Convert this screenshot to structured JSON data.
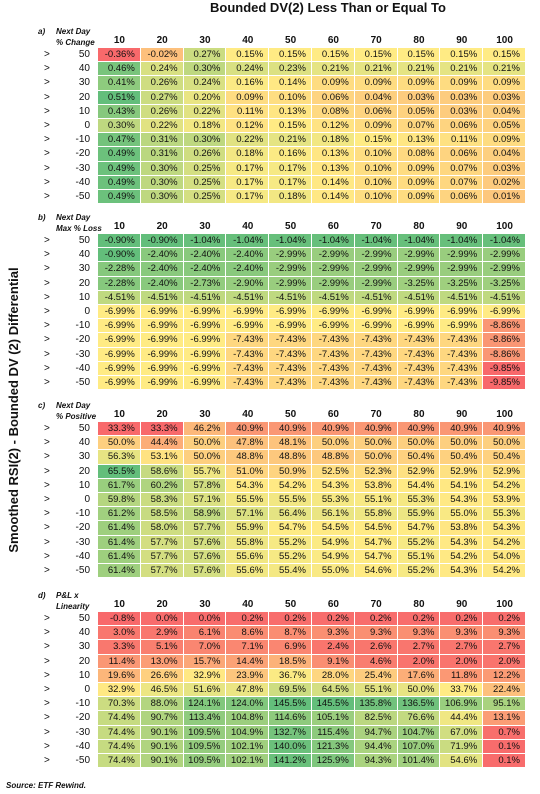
{
  "title": "Bounded DV(2) Less Than or Equal To",
  "side_label": "Smoothed RSI(2) - Bounded DV (2) Differential",
  "source": "Source:  ETF Rewind.",
  "tables": [
    {
      "letter": "a)",
      "title": "Next Day",
      "subtitle": "% Change",
      "row_prefix": ">",
      "columns": [
        "10",
        "20",
        "30",
        "40",
        "50",
        "60",
        "70",
        "80",
        "90",
        "100"
      ],
      "rows": [
        {
          "label": "50",
          "cells": [
            "-0.36%",
            "-0.02%",
            "0.27%",
            "0.15%",
            "0.15%",
            "0.15%",
            "0.15%",
            "0.15%",
            "0.15%",
            "0.15%"
          ]
        },
        {
          "label": "40",
          "cells": [
            "0.46%",
            "0.24%",
            "0.30%",
            "0.24%",
            "0.23%",
            "0.21%",
            "0.21%",
            "0.21%",
            "0.21%",
            "0.21%"
          ]
        },
        {
          "label": "30",
          "cells": [
            "0.41%",
            "0.26%",
            "0.24%",
            "0.16%",
            "0.14%",
            "0.09%",
            "0.09%",
            "0.09%",
            "0.09%",
            "0.09%"
          ]
        },
        {
          "label": "20",
          "cells": [
            "0.51%",
            "0.27%",
            "0.20%",
            "0.09%",
            "0.10%",
            "0.06%",
            "0.04%",
            "0.03%",
            "0.03%",
            "0.03%"
          ]
        },
        {
          "label": "10",
          "cells": [
            "0.43%",
            "0.26%",
            "0.22%",
            "0.11%",
            "0.13%",
            "0.08%",
            "0.06%",
            "0.05%",
            "0.03%",
            "0.04%"
          ]
        },
        {
          "label": "0",
          "cells": [
            "0.30%",
            "0.22%",
            "0.18%",
            "0.12%",
            "0.15%",
            "0.12%",
            "0.09%",
            "0.07%",
            "0.06%",
            "0.05%"
          ]
        },
        {
          "label": "-10",
          "cells": [
            "0.47%",
            "0.31%",
            "0.30%",
            "0.22%",
            "0.21%",
            "0.18%",
            "0.15%",
            "0.13%",
            "0.11%",
            "0.09%"
          ]
        },
        {
          "label": "-20",
          "cells": [
            "0.49%",
            "0.31%",
            "0.26%",
            "0.18%",
            "0.16%",
            "0.13%",
            "0.10%",
            "0.08%",
            "0.06%",
            "0.04%"
          ]
        },
        {
          "label": "-30",
          "cells": [
            "0.49%",
            "0.30%",
            "0.25%",
            "0.17%",
            "0.17%",
            "0.13%",
            "0.10%",
            "0.09%",
            "0.07%",
            "0.03%"
          ]
        },
        {
          "label": "-40",
          "cells": [
            "0.49%",
            "0.30%",
            "0.25%",
            "0.17%",
            "0.17%",
            "0.14%",
            "0.10%",
            "0.09%",
            "0.07%",
            "0.02%"
          ]
        },
        {
          "label": "-50",
          "cells": [
            "0.49%",
            "0.30%",
            "0.25%",
            "0.17%",
            "0.18%",
            "0.14%",
            "0.10%",
            "0.09%",
            "0.06%",
            "0.01%"
          ]
        }
      ]
    },
    {
      "letter": "b)",
      "title": "Next Day",
      "subtitle": "Max % Loss",
      "row_prefix": ">",
      "columns": [
        "10",
        "20",
        "30",
        "40",
        "50",
        "60",
        "70",
        "80",
        "90",
        "100"
      ],
      "rows": [
        {
          "label": "50",
          "cells": [
            "-0.90%",
            "-0.90%",
            "-1.04%",
            "-1.04%",
            "-1.04%",
            "-1.04%",
            "-1.04%",
            "-1.04%",
            "-1.04%",
            "-1.04%"
          ]
        },
        {
          "label": "40",
          "cells": [
            "-0.90%",
            "-2.40%",
            "-2.40%",
            "-2.40%",
            "-2.99%",
            "-2.99%",
            "-2.99%",
            "-2.99%",
            "-2.99%",
            "-2.99%"
          ]
        },
        {
          "label": "30",
          "cells": [
            "-2.28%",
            "-2.40%",
            "-2.40%",
            "-2.40%",
            "-2.99%",
            "-2.99%",
            "-2.99%",
            "-2.99%",
            "-2.99%",
            "-2.99%"
          ]
        },
        {
          "label": "20",
          "cells": [
            "-2.28%",
            "-2.40%",
            "-2.73%",
            "-2.90%",
            "-2.99%",
            "-2.99%",
            "-2.99%",
            "-3.25%",
            "-3.25%",
            "-3.25%"
          ]
        },
        {
          "label": "10",
          "cells": [
            "-4.51%",
            "-4.51%",
            "-4.51%",
            "-4.51%",
            "-4.51%",
            "-4.51%",
            "-4.51%",
            "-4.51%",
            "-4.51%",
            "-4.51%"
          ]
        },
        {
          "label": "0",
          "cells": [
            "-6.99%",
            "-6.99%",
            "-6.99%",
            "-6.99%",
            "-6.99%",
            "-6.99%",
            "-6.99%",
            "-6.99%",
            "-6.99%",
            "-6.99%"
          ]
        },
        {
          "label": "-10",
          "cells": [
            "-6.99%",
            "-6.99%",
            "-6.99%",
            "-6.99%",
            "-6.99%",
            "-6.99%",
            "-6.99%",
            "-6.99%",
            "-6.99%",
            "-8.86%"
          ]
        },
        {
          "label": "-20",
          "cells": [
            "-6.99%",
            "-6.99%",
            "-6.99%",
            "-7.43%",
            "-7.43%",
            "-7.43%",
            "-7.43%",
            "-7.43%",
            "-7.43%",
            "-8.86%"
          ]
        },
        {
          "label": "-30",
          "cells": [
            "-6.99%",
            "-6.99%",
            "-6.99%",
            "-7.43%",
            "-7.43%",
            "-7.43%",
            "-7.43%",
            "-7.43%",
            "-7.43%",
            "-8.86%"
          ]
        },
        {
          "label": "-40",
          "cells": [
            "-6.99%",
            "-6.99%",
            "-6.99%",
            "-7.43%",
            "-7.43%",
            "-7.43%",
            "-7.43%",
            "-7.43%",
            "-7.43%",
            "-9.85%"
          ]
        },
        {
          "label": "-50",
          "cells": [
            "-6.99%",
            "-6.99%",
            "-6.99%",
            "-7.43%",
            "-7.43%",
            "-7.43%",
            "-7.43%",
            "-7.43%",
            "-7.43%",
            "-9.85%"
          ]
        }
      ]
    },
    {
      "letter": "c)",
      "title": "Next Day",
      "subtitle": "% Positive",
      "row_prefix": ">",
      "columns": [
        "10",
        "20",
        "30",
        "40",
        "50",
        "60",
        "70",
        "80",
        "90",
        "100"
      ],
      "rows": [
        {
          "label": "50",
          "cells": [
            "33.3%",
            "33.3%",
            "46.2%",
            "40.9%",
            "40.9%",
            "40.9%",
            "40.9%",
            "40.9%",
            "40.9%",
            "40.9%"
          ]
        },
        {
          "label": "40",
          "cells": [
            "50.0%",
            "44.4%",
            "50.0%",
            "47.8%",
            "48.1%",
            "50.0%",
            "50.0%",
            "50.0%",
            "50.0%",
            "50.0%"
          ]
        },
        {
          "label": "30",
          "cells": [
            "56.3%",
            "53.1%",
            "50.0%",
            "48.8%",
            "48.8%",
            "48.8%",
            "50.0%",
            "50.4%",
            "50.4%",
            "50.4%"
          ]
        },
        {
          "label": "20",
          "cells": [
            "65.5%",
            "58.6%",
            "55.7%",
            "51.0%",
            "50.9%",
            "52.5%",
            "52.3%",
            "52.9%",
            "52.9%",
            "52.9%"
          ]
        },
        {
          "label": "10",
          "cells": [
            "61.7%",
            "60.2%",
            "57.8%",
            "54.3%",
            "54.2%",
            "54.3%",
            "53.8%",
            "54.4%",
            "54.1%",
            "54.2%"
          ]
        },
        {
          "label": "0",
          "cells": [
            "59.8%",
            "58.3%",
            "57.1%",
            "55.5%",
            "55.5%",
            "55.3%",
            "55.1%",
            "55.3%",
            "54.3%",
            "53.9%"
          ]
        },
        {
          "label": "-10",
          "cells": [
            "61.2%",
            "58.5%",
            "58.9%",
            "57.1%",
            "56.4%",
            "56.1%",
            "55.8%",
            "55.9%",
            "55.0%",
            "55.3%"
          ]
        },
        {
          "label": "-20",
          "cells": [
            "61.4%",
            "58.0%",
            "57.7%",
            "55.9%",
            "54.7%",
            "54.5%",
            "54.5%",
            "54.7%",
            "53.8%",
            "54.3%"
          ]
        },
        {
          "label": "-30",
          "cells": [
            "61.4%",
            "57.7%",
            "57.6%",
            "55.8%",
            "55.2%",
            "54.9%",
            "54.7%",
            "55.2%",
            "54.3%",
            "54.2%"
          ]
        },
        {
          "label": "-40",
          "cells": [
            "61.4%",
            "57.7%",
            "57.6%",
            "55.6%",
            "55.2%",
            "54.9%",
            "54.7%",
            "55.1%",
            "54.2%",
            "54.0%"
          ]
        },
        {
          "label": "-50",
          "cells": [
            "61.4%",
            "57.7%",
            "57.6%",
            "55.6%",
            "55.4%",
            "55.0%",
            "54.6%",
            "55.2%",
            "54.3%",
            "54.2%"
          ]
        }
      ]
    },
    {
      "letter": "d)",
      "title": "P&L x",
      "subtitle": "Linearity",
      "row_prefix": ">",
      "columns": [
        "10",
        "20",
        "30",
        "40",
        "50",
        "60",
        "70",
        "80",
        "90",
        "100"
      ],
      "rows": [
        {
          "label": "50",
          "cells": [
            "-0.8%",
            "0.0%",
            "0.0%",
            "0.2%",
            "0.2%",
            "0.2%",
            "0.2%",
            "0.2%",
            "0.2%",
            "0.2%"
          ]
        },
        {
          "label": "40",
          "cells": [
            "3.0%",
            "2.9%",
            "6.1%",
            "8.6%",
            "8.7%",
            "9.3%",
            "9.3%",
            "9.3%",
            "9.3%",
            "9.3%"
          ]
        },
        {
          "label": "30",
          "cells": [
            "3.3%",
            "5.1%",
            "7.0%",
            "7.1%",
            "6.9%",
            "2.4%",
            "2.6%",
            "2.7%",
            "2.7%",
            "2.7%"
          ]
        },
        {
          "label": "20",
          "cells": [
            "11.4%",
            "13.0%",
            "15.7%",
            "14.4%",
            "18.5%",
            "9.1%",
            "4.6%",
            "2.0%",
            "2.0%",
            "2.0%"
          ]
        },
        {
          "label": "10",
          "cells": [
            "19.6%",
            "26.6%",
            "32.9%",
            "23.9%",
            "36.7%",
            "28.0%",
            "25.4%",
            "17.6%",
            "11.8%",
            "12.2%"
          ]
        },
        {
          "label": "0",
          "cells": [
            "32.9%",
            "46.5%",
            "51.6%",
            "47.8%",
            "69.5%",
            "64.5%",
            "55.1%",
            "50.0%",
            "33.7%",
            "22.4%"
          ]
        },
        {
          "label": "-10",
          "cells": [
            "70.3%",
            "88.0%",
            "124.1%",
            "124.0%",
            "145.5%",
            "145.5%",
            "135.8%",
            "136.5%",
            "106.9%",
            "95.1%"
          ]
        },
        {
          "label": "-20",
          "cells": [
            "74.4%",
            "90.7%",
            "113.4%",
            "104.8%",
            "114.6%",
            "105.1%",
            "82.5%",
            "76.6%",
            "44.4%",
            "13.1%"
          ]
        },
        {
          "label": "-30",
          "cells": [
            "74.4%",
            "90.1%",
            "109.5%",
            "104.9%",
            "132.7%",
            "115.4%",
            "94.7%",
            "104.7%",
            "67.0%",
            "0.7%"
          ]
        },
        {
          "label": "-40",
          "cells": [
            "74.4%",
            "90.1%",
            "109.5%",
            "102.1%",
            "140.0%",
            "121.3%",
            "94.4%",
            "107.0%",
            "71.9%",
            "0.1%"
          ]
        },
        {
          "label": "-50",
          "cells": [
            "74.4%",
            "90.1%",
            "109.5%",
            "102.1%",
            "141.2%",
            "125.9%",
            "94.3%",
            "101.4%",
            "54.6%",
            "0.1%"
          ]
        }
      ]
    }
  ]
}
